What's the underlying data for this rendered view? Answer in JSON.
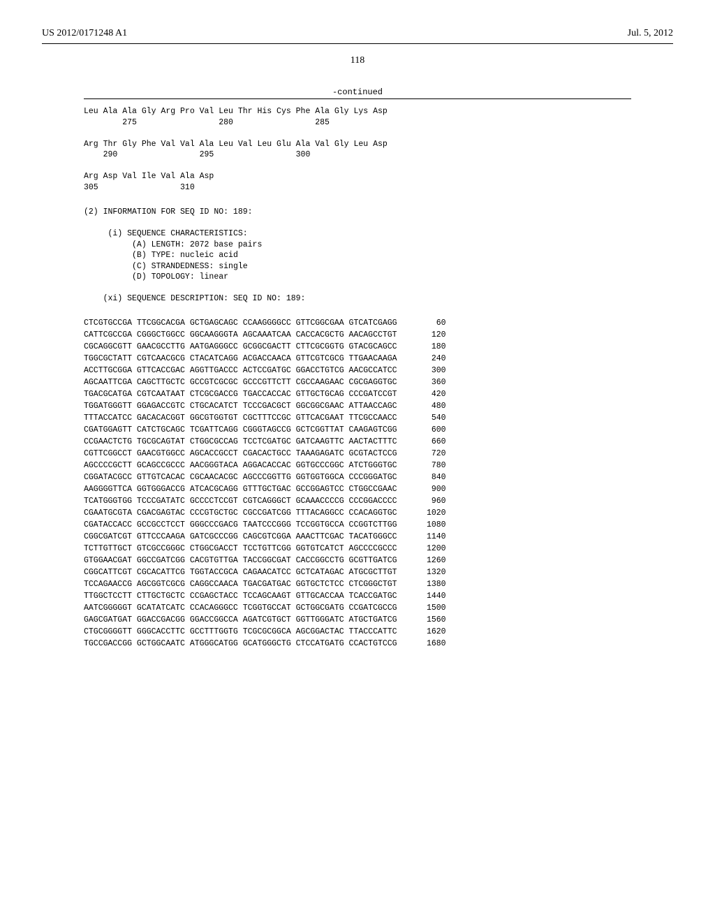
{
  "header": {
    "left": "US 2012/0171248 A1",
    "right": "Jul. 5, 2012"
  },
  "page_number": "118",
  "continued_label": "-continued",
  "aa_rows": [
    {
      "res": "Leu Ala Ala Gly Arg Pro Val Leu Thr His Cys Phe Ala Gly Lys Asp",
      "num": "        275                 280                 285"
    },
    {
      "res": "Arg Thr Gly Phe Val Val Ala Leu Val Leu Glu Ala Val Gly Leu Asp",
      "num": "    290                 295                 300"
    },
    {
      "res": "Arg Asp Val Ile Val Ala Asp",
      "num": "305                 310"
    }
  ],
  "info": {
    "line1": "(2) INFORMATION FOR SEQ ID NO: 189:",
    "char_header": "(i) SEQUENCE CHARACTERISTICS:",
    "char_a": "(A) LENGTH: 2072 base pairs",
    "char_b": "(B) TYPE: nucleic acid",
    "char_c": "(C) STRANDEDNESS: single",
    "char_d": "(D) TOPOLOGY: linear",
    "desc": "(xi) SEQUENCE DESCRIPTION: SEQ ID NO: 189:"
  },
  "dna_rows": [
    {
      "g": "CTCGTGCCGA TTCGGCACGA GCTGAGCAGC CCAAGGGGCC GTTCGGCGAA GTCATCGAGG",
      "p": "60"
    },
    {
      "g": "CATTCGCCGA CGGGCTGGCC GGCAAGGGTA AGCAAATCAA CACCACGCTG AACAGCCTGT",
      "p": "120"
    },
    {
      "g": "CGCAGGCGTT GAACGCCTTG AATGAGGGCC GCGGCGACTT CTTCGCGGTG GTACGCAGCC",
      "p": "180"
    },
    {
      "g": "TGGCGCTATT CGTCAACGCG CTACATCAGG ACGACCAACA GTTCGTCGCG TTGAACAAGA",
      "p": "240"
    },
    {
      "g": "ACCTTGCGGA GTTCACCGAC AGGTTGACCC ACTCCGATGC GGACCTGTCG AACGCCATCC",
      "p": "300"
    },
    {
      "g": "AGCAATTCGA CAGCTTGCTC GCCGTCGCGC GCCCGTTCTT CGCCAAGAAC CGCGAGGTGC",
      "p": "360"
    },
    {
      "g": "TGACGCATGA CGTCAATAAT CTCGCGACCG TGACCACCAC GTTGCTGCAG CCCGATCCGT",
      "p": "420"
    },
    {
      "g": "TGGATGGGTT GGAGACCGTC CTGCACATCT TCCCGACGCT GGCGGCGAAC ATTAACCAGC",
      "p": "480"
    },
    {
      "g": "TTTACCATCC GACACACGGT GGCGTGGTGT CGCTTTCCGC GTTCACGAAT TTCGCCAACC",
      "p": "540"
    },
    {
      "g": "CGATGGAGTT CATCTGCAGC TCGATTCAGG CGGGTAGCCG GCTCGGTTAT CAAGAGTCGG",
      "p": "600"
    },
    {
      "g": "CCGAACTCTG TGCGCAGTAT CTGGCGCCAG TCCTCGATGC GATCAAGTTC AACTACTTTC",
      "p": "660"
    },
    {
      "g": "CGTTCGGCCT GAACGTGGCC AGCACCGCCT CGACACTGCC TAAAGAGATC GCGTACTCCG",
      "p": "720"
    },
    {
      "g": "AGCCCCGCTT GCAGCCGCCC AACGGGTACA AGGACACCAC GGTGCCCGGC ATCTGGGTGC",
      "p": "780"
    },
    {
      "g": "CGGATACGCC GTTGTCACAC CGCAACACGC AGCCCGGTTG GGTGGTGGCA CCCGGGATGC",
      "p": "840"
    },
    {
      "g": "AAGGGGTTCA GGTGGGACCG ATCACGCAGG GTTTGCTGAC GCCGGAGTCC CTGGCCGAAC",
      "p": "900"
    },
    {
      "g": "TCATGGGTGG TCCCGATATC GCCCCTCCGT CGTCAGGGCT GCAAACCCCG CCCGGACCCC",
      "p": "960"
    },
    {
      "g": "CGAATGCGTA CGACGAGTAC CCCGTGCTGC CGCCGATCGG TTTACAGGCC CCACAGGTGC",
      "p": "1020"
    },
    {
      "g": "CGATACCACC GCCGCCTCCT GGGCCCGACG TAATCCCGGG TCCGGTGCCA CCGGTCTTGG",
      "p": "1080"
    },
    {
      "g": "CGGCGATCGT GTTCCCAAGA GATCGCCCGG CAGCGTCGGA AAACTTCGAC TACATGGGCC",
      "p": "1140"
    },
    {
      "g": "TCTTGTTGCT GTCGCCGGGC CTGGCGACCT TCCTGTTCGG GGTGTCATCT AGCCCCGCCC",
      "p": "1200"
    },
    {
      "g": "GTGGAACGAT GGCCGATCGG CACGTGTTGA TACCGGCGAT CACCGGCCTG GCGTTGATCG",
      "p": "1260"
    },
    {
      "g": "CGGCATTCGT CGCACATTCG TGGTACCGCA CAGAACATCC GCTCATAGAC ATGCGCTTGT",
      "p": "1320"
    },
    {
      "g": "TCCAGAACCG AGCGGTCGCG CAGGCCAACA TGACGATGAC GGTGCTCTCC CTCGGGCTGT",
      "p": "1380"
    },
    {
      "g": "TTGGCTCCTT CTTGCTGCTC CCGAGCTACC TCCAGCAAGT GTTGCACCAA TCACCGATGC",
      "p": "1440"
    },
    {
      "g": "AATCGGGGGT GCATATCATC CCACAGGGCC TCGGTGCCAT GCTGGCGATG CCGATCGCCG",
      "p": "1500"
    },
    {
      "g": "GAGCGATGAT GGACCGACGG GGACCGGCCA AGATCGTGCT GGTTGGGATC ATGCTGATCG",
      "p": "1560"
    },
    {
      "g": "CTGCGGGGTT GGGCACCTTC GCCTTTGGTG TCGCGCGGCA AGCGGACTAC TTACCCATTC",
      "p": "1620"
    },
    {
      "g": "TGCCGACCGG GCTGGCAATC ATGGGCATGG GCATGGGCTG CTCCATGATG CCACTGTCCG",
      "p": "1680"
    }
  ]
}
